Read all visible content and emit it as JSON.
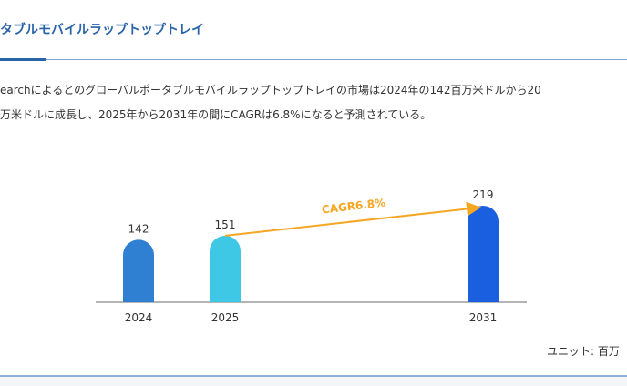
{
  "header": {
    "title": "タブルモバイルラップトップトレイ"
  },
  "description": {
    "line1": "earchによるとのグローバルポータブルモバイルラップトップトレイの市場は2024年の142百万米ドルから20",
    "line2": "万米ドルに成長し、2025年から2031年の間にCAGRは6.8%になると予測されている。"
  },
  "chart_data": {
    "type": "bar",
    "categories": [
      "2024",
      "2025",
      "2031"
    ],
    "values": [
      142,
      151,
      219
    ],
    "colors": [
      "#2f7fd3",
      "#3fc8e6",
      "#1a5fe0"
    ],
    "annotation": {
      "text": "CAGR6.8%",
      "from": "2025",
      "to": "2031",
      "color": "#f5a623"
    },
    "ylim": [
      0,
      219
    ],
    "unit_label": "ユニット: 百万"
  }
}
